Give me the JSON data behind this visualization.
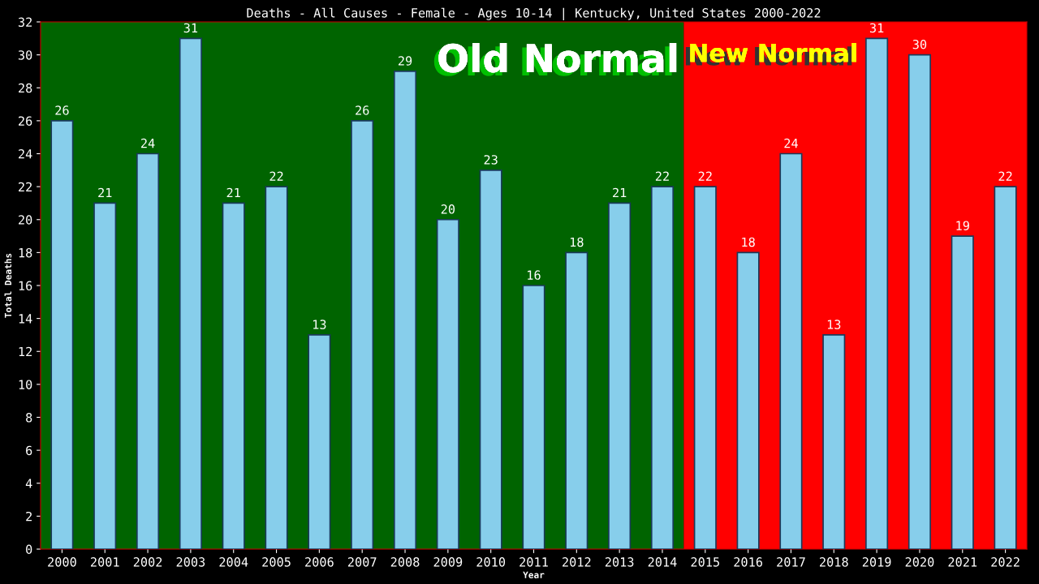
{
  "chart_data": {
    "type": "bar",
    "title": "Deaths - All Causes - Female - Ages 10-14 | Kentucky, United States 2000-2022",
    "xlabel": "Year",
    "ylabel": "Total Deaths",
    "categories": [
      "2000",
      "2001",
      "2002",
      "2003",
      "2004",
      "2005",
      "2006",
      "2007",
      "2008",
      "2009",
      "2010",
      "2011",
      "2012",
      "2013",
      "2014",
      "2015",
      "2016",
      "2017",
      "2018",
      "2019",
      "2020",
      "2021",
      "2022"
    ],
    "values": [
      26,
      21,
      24,
      31,
      21,
      22,
      13,
      26,
      29,
      20,
      23,
      16,
      18,
      21,
      22,
      22,
      18,
      24,
      13,
      31,
      30,
      19,
      22
    ],
    "color": "#87ceeb",
    "ylim": [
      0,
      32
    ],
    "yticks": [
      0,
      2,
      4,
      6,
      8,
      10,
      12,
      14,
      16,
      18,
      20,
      22,
      24,
      26,
      28,
      30,
      32
    ],
    "grid": false,
    "data_labels": true,
    "bands": [
      {
        "axis": "x",
        "from": "2000",
        "to": "2014",
        "label": "Old Normal",
        "color": "#006400"
      },
      {
        "axis": "x",
        "from": "2015",
        "to": "2022",
        "label": "New Normal",
        "color": "#ff0000"
      }
    ]
  }
}
